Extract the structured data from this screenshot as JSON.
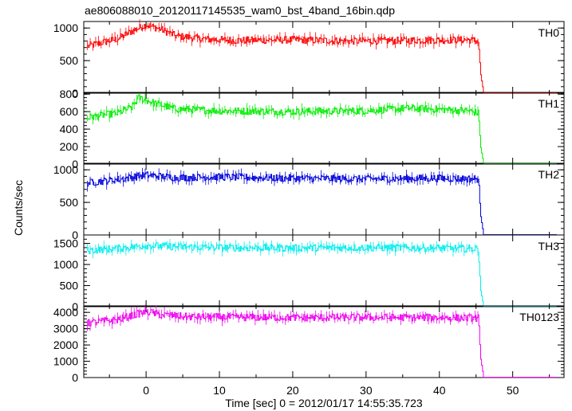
{
  "chart_data": {
    "type": "line",
    "title": "ae806088010_20120117145535_wam0_bst_4band_16bin.qdp",
    "xlabel": "Time [sec] 0 = 2012/01/17 14:55:35.723",
    "ylabel": "Counts/sec",
    "xlim": [
      -8.5,
      57
    ],
    "x_ticks": [
      0,
      10,
      20,
      30,
      40,
      50
    ],
    "grid": false,
    "drop_time": 45.5,
    "panels": [
      {
        "name": "TH0",
        "color": "#ff0000",
        "ylim": [
          0,
          1100
        ],
        "y_ticks": [
          0,
          500,
          1000
        ],
        "y_tick_labels": [
          "0",
          "500",
          "1000"
        ],
        "series": [
          {
            "x": -8,
            "y": 720
          },
          {
            "x": -6,
            "y": 780
          },
          {
            "x": -4,
            "y": 830
          },
          {
            "x": -2,
            "y": 950
          },
          {
            "x": 0,
            "y": 1050
          },
          {
            "x": 2,
            "y": 980
          },
          {
            "x": 4,
            "y": 880
          },
          {
            "x": 8,
            "y": 830
          },
          {
            "x": 12,
            "y": 810
          },
          {
            "x": 20,
            "y": 820
          },
          {
            "x": 28,
            "y": 800
          },
          {
            "x": 36,
            "y": 810
          },
          {
            "x": 44,
            "y": 820
          },
          {
            "x": 45.3,
            "y": 800
          },
          {
            "x": 45.6,
            "y": 300
          },
          {
            "x": 46,
            "y": 5
          },
          {
            "x": 56,
            "y": 5
          }
        ]
      },
      {
        "name": "TH1",
        "color": "#00ee00",
        "ylim": [
          0,
          820
        ],
        "y_ticks": [
          0,
          200,
          400,
          600,
          800
        ],
        "y_tick_labels": [
          "0",
          "200",
          "400",
          "600",
          "800"
        ],
        "series": [
          {
            "x": -8,
            "y": 530
          },
          {
            "x": -6,
            "y": 560
          },
          {
            "x": -4,
            "y": 580
          },
          {
            "x": -2,
            "y": 650
          },
          {
            "x": -1,
            "y": 760
          },
          {
            "x": 1,
            "y": 700
          },
          {
            "x": 4,
            "y": 630
          },
          {
            "x": 10,
            "y": 610
          },
          {
            "x": 20,
            "y": 600
          },
          {
            "x": 30,
            "y": 610
          },
          {
            "x": 36,
            "y": 640
          },
          {
            "x": 44,
            "y": 610
          },
          {
            "x": 45.3,
            "y": 580
          },
          {
            "x": 45.6,
            "y": 200
          },
          {
            "x": 46,
            "y": 5
          },
          {
            "x": 56,
            "y": 5
          }
        ]
      },
      {
        "name": "TH2",
        "color": "#0000dd",
        "ylim": [
          0,
          1100
        ],
        "y_ticks": [
          0,
          500,
          1000
        ],
        "y_tick_labels": [
          "0",
          "500",
          "1000"
        ],
        "series": [
          {
            "x": -8,
            "y": 800
          },
          {
            "x": -4,
            "y": 850
          },
          {
            "x": 0,
            "y": 920
          },
          {
            "x": 4,
            "y": 880
          },
          {
            "x": 10,
            "y": 890
          },
          {
            "x": 20,
            "y": 870
          },
          {
            "x": 30,
            "y": 860
          },
          {
            "x": 40,
            "y": 870
          },
          {
            "x": 45.3,
            "y": 860
          },
          {
            "x": 45.6,
            "y": 300
          },
          {
            "x": 46,
            "y": 5
          },
          {
            "x": 56,
            "y": 5
          }
        ]
      },
      {
        "name": "TH3",
        "color": "#00eeee",
        "ylim": [
          0,
          1700
        ],
        "y_ticks": [
          0,
          500,
          1000,
          1500
        ],
        "y_tick_labels": [
          "0",
          "500",
          "1000",
          "1500"
        ],
        "series": [
          {
            "x": -8,
            "y": 1330
          },
          {
            "x": -4,
            "y": 1380
          },
          {
            "x": 0,
            "y": 1450
          },
          {
            "x": 4,
            "y": 1420
          },
          {
            "x": 10,
            "y": 1400
          },
          {
            "x": 20,
            "y": 1390
          },
          {
            "x": 30,
            "y": 1400
          },
          {
            "x": 40,
            "y": 1390
          },
          {
            "x": 45.3,
            "y": 1370
          },
          {
            "x": 45.6,
            "y": 400
          },
          {
            "x": 46,
            "y": 10
          },
          {
            "x": 56,
            "y": 10
          }
        ]
      },
      {
        "name": "TH0123",
        "color": "#ee00ee",
        "ylim": [
          0,
          4400
        ],
        "y_ticks": [
          0,
          1000,
          2000,
          3000,
          4000
        ],
        "y_tick_labels": [
          "0",
          "1000",
          "2000",
          "3000",
          "4000"
        ],
        "series": [
          {
            "x": -8,
            "y": 3350
          },
          {
            "x": -4,
            "y": 3550
          },
          {
            "x": 0,
            "y": 4050
          },
          {
            "x": 2,
            "y": 3850
          },
          {
            "x": 6,
            "y": 3720
          },
          {
            "x": 12,
            "y": 3700
          },
          {
            "x": 20,
            "y": 3680
          },
          {
            "x": 30,
            "y": 3690
          },
          {
            "x": 40,
            "y": 3680
          },
          {
            "x": 45.3,
            "y": 3650
          },
          {
            "x": 45.6,
            "y": 1200
          },
          {
            "x": 46,
            "y": 20
          },
          {
            "x": 56,
            "y": 20
          }
        ]
      }
    ]
  }
}
